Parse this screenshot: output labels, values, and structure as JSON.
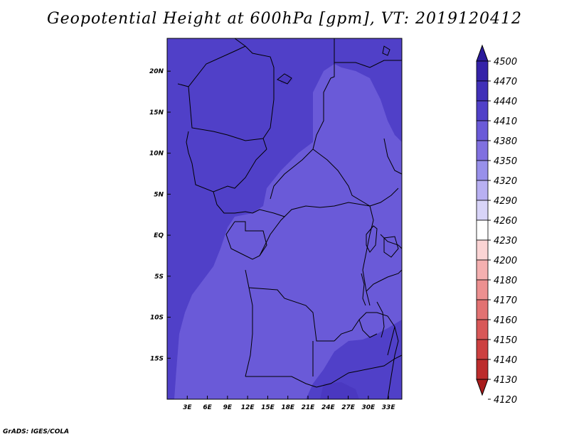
{
  "title": "Geopotential Height at 600hPa [gpm], VT: 2019120412",
  "credit": "GrADS: IGES/COLA",
  "map": {
    "lon_range": [
      0,
      35
    ],
    "lat_range": [
      -20,
      24
    ],
    "x_ticks": [
      "3E",
      "6E",
      "9E",
      "12E",
      "15E",
      "18E",
      "21E",
      "24E",
      "27E",
      "30E",
      "33E"
    ],
    "y_ticks": [
      "20N",
      "15N",
      "10N",
      "5N",
      "EQ",
      "5S",
      "10S",
      "15S"
    ],
    "shading": {
      "background": "#6a5ad8",
      "higher_region": "#5040c8",
      "highest_patch": "#4a38c0"
    }
  },
  "colorbar": {
    "levels": [
      "4500",
      "4470",
      "4440",
      "4410",
      "4380",
      "4350",
      "4320",
      "4290",
      "4260",
      "4230",
      "4200",
      "4180",
      "4170",
      "4160",
      "4150",
      "4140",
      "4130",
      "4120"
    ],
    "colors": [
      "#2a1a9a",
      "#3422a8",
      "#4030b8",
      "#5040c8",
      "#6a5ad8",
      "#8070e0",
      "#9890ea",
      "#b8b0f2",
      "#d8d4f8",
      "#ffffff",
      "#fbd4d4",
      "#f4b0b0",
      "#ec9090",
      "#e27272",
      "#d85858",
      "#cc4040",
      "#bc2c2c",
      "#a81c1c"
    ]
  }
}
